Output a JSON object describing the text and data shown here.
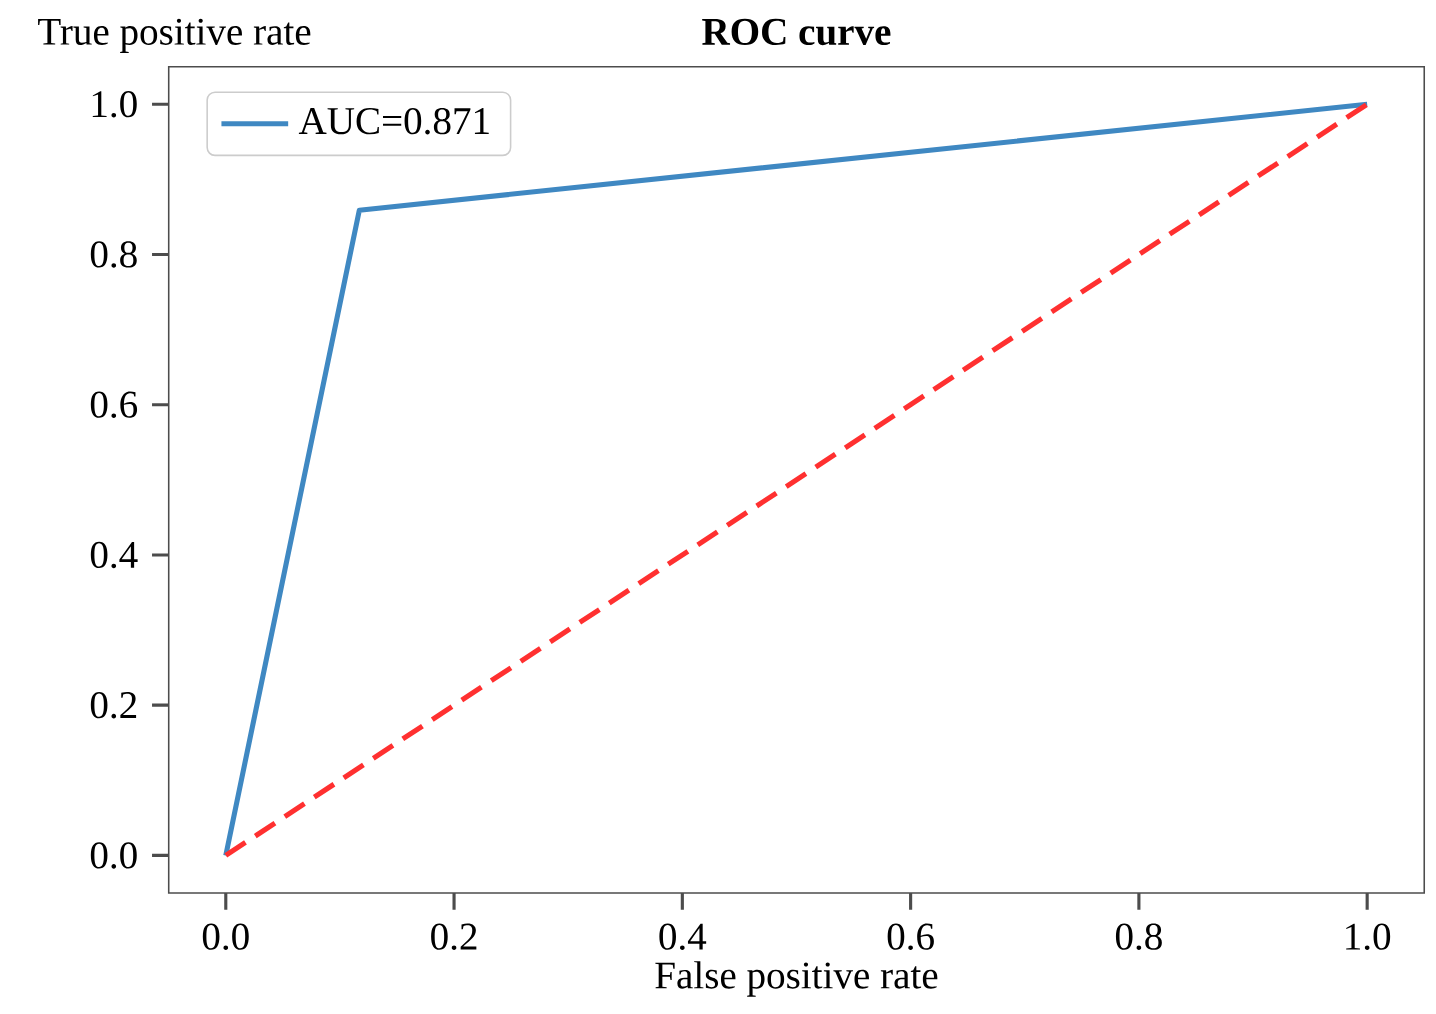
{
  "chart_data": {
    "type": "line",
    "title": "ROC curve",
    "xlabel": "False positive rate",
    "ylabel": "True positive rate",
    "xlim": [
      -0.05,
      1.05
    ],
    "ylim": [
      -0.05,
      1.05
    ],
    "xticks": [
      {
        "value": 0,
        "label": "0.0"
      },
      {
        "value": 0.2,
        "label": "0.2"
      },
      {
        "value": 0.4,
        "label": "0.4"
      },
      {
        "value": 0.6,
        "label": "0.6"
      },
      {
        "value": 0.8,
        "label": "0.8"
      },
      {
        "value": 1,
        "label": "1.0"
      }
    ],
    "yticks": [
      {
        "value": 0,
        "label": "0.0"
      },
      {
        "value": 0.2,
        "label": "0.2"
      },
      {
        "value": 0.4,
        "label": "0.4"
      },
      {
        "value": 0.6,
        "label": "0.6"
      },
      {
        "value": 0.8,
        "label": "0.8"
      },
      {
        "value": 1,
        "label": "1.0"
      }
    ],
    "series": [
      {
        "name": "AUC=0.871",
        "color": "#3f88c2",
        "x": [
          0,
          0.117,
          1
        ],
        "values": [
          0,
          0.859,
          1
        ],
        "line_style": "solid"
      },
      {
        "color": "#ff3030",
        "x": [
          0,
          1
        ],
        "values": [
          0,
          1
        ],
        "line_style": "dashed"
      }
    ],
    "grid": false,
    "legend": "top left",
    "marker": "none"
  }
}
